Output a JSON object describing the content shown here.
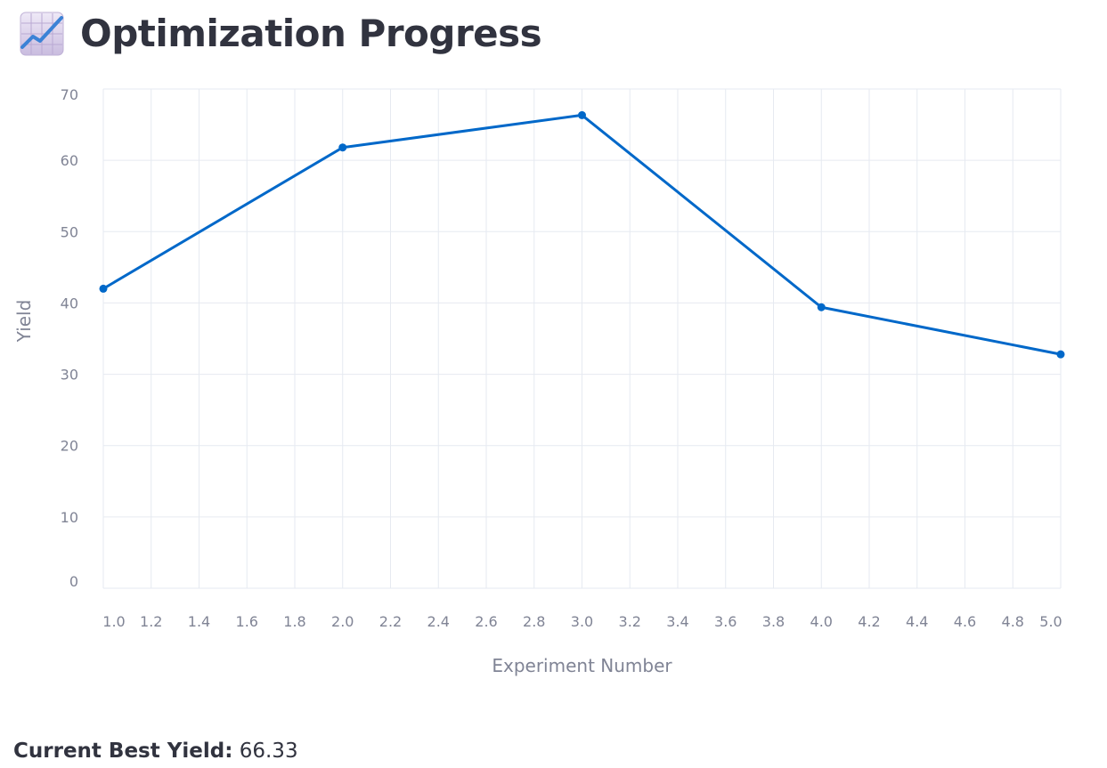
{
  "header": {
    "title": "Optimization Progress",
    "icon": "chart-increasing-icon"
  },
  "chart_data": {
    "type": "line",
    "title": "",
    "xlabel": "Experiment Number",
    "ylabel": "Yield",
    "x": [
      1,
      2,
      3,
      4,
      5
    ],
    "series": [
      {
        "values": [
          42.0,
          61.8,
          66.33,
          39.4,
          32.8
        ]
      }
    ],
    "xlim": [
      1.0,
      5.0
    ],
    "ylim": [
      0,
      70
    ],
    "xticks": [
      "1.0",
      "1.2",
      "1.4",
      "1.6",
      "1.8",
      "2.0",
      "2.2",
      "2.4",
      "2.6",
      "2.8",
      "3.0",
      "3.2",
      "3.4",
      "3.6",
      "3.8",
      "4.0",
      "4.2",
      "4.4",
      "4.6",
      "4.8",
      "5.0"
    ],
    "yticks": [
      "0",
      "10",
      "20",
      "30",
      "40",
      "50",
      "60",
      "70"
    ],
    "grid": true,
    "line_color": "#0068c9",
    "grid_color": "#e6eaf1"
  },
  "summary": {
    "label": "Current Best Yield:",
    "value": "66.33"
  }
}
